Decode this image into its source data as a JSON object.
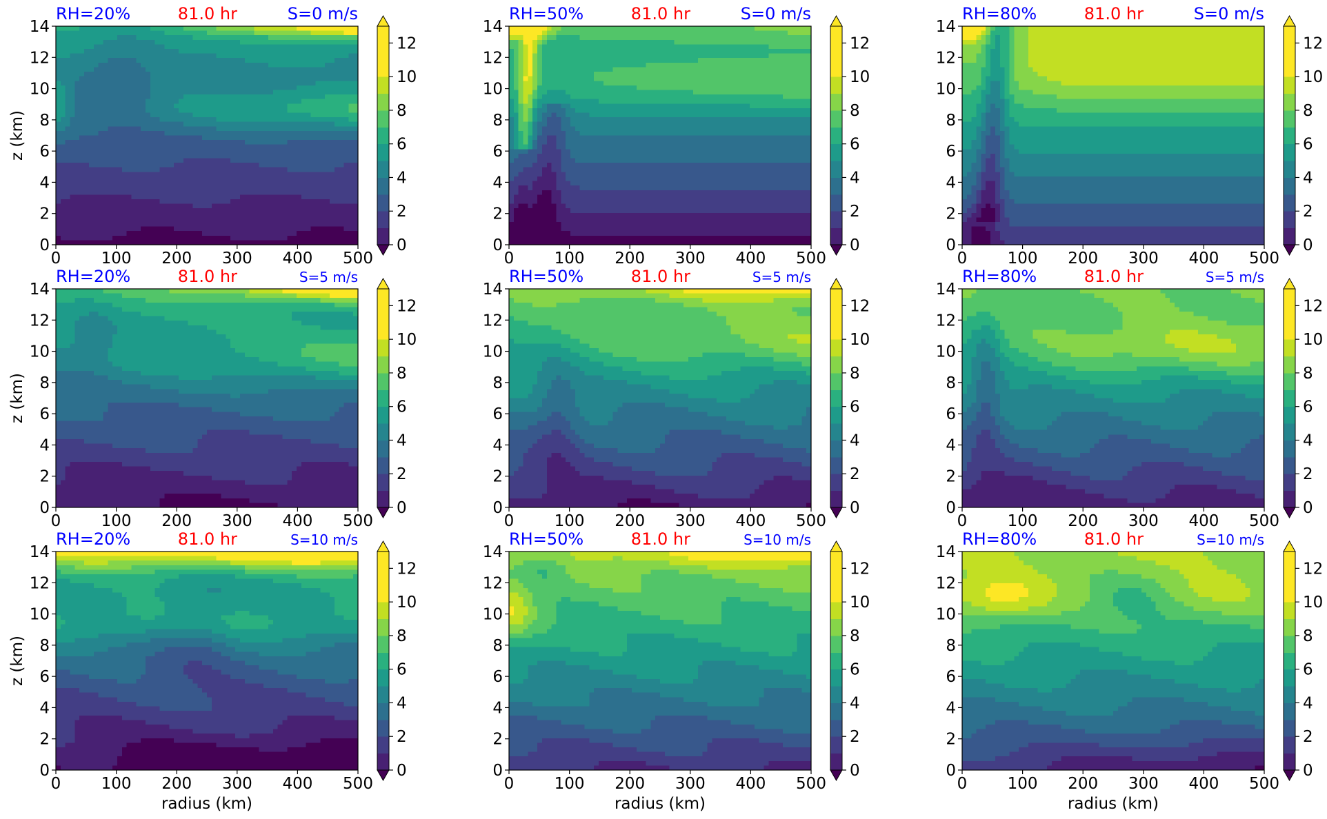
{
  "figure": {
    "colors": {
      "rh_label": "#0000ff",
      "time_label": "#ff0000",
      "shear_label": "#0000ff",
      "axis": "#000000"
    },
    "colormap": "viridis",
    "colorbar": {
      "levels": [
        0,
        1,
        2,
        3,
        4,
        5,
        6,
        7,
        8,
        9,
        10,
        11,
        12,
        13
      ],
      "ticks": [
        0,
        2,
        4,
        6,
        8,
        10,
        12
      ],
      "extend": "both",
      "colors": [
        "#440154",
        "#482173",
        "#433e85",
        "#38588c",
        "#2d708e",
        "#25858e",
        "#1e9b8a",
        "#2ab07f",
        "#52c569",
        "#86d549",
        "#c2df23",
        "#fde725"
      ]
    }
  },
  "chart_data": [
    {
      "type": "contour",
      "rh": "RH=20%",
      "time": "81.0 hr",
      "shear": "S=0 m/s",
      "xlabel": "",
      "ylabel": "z (km)",
      "xlim": [
        0,
        500
      ],
      "ylim": [
        0,
        14
      ],
      "xticks": [
        0,
        100,
        200,
        300,
        400,
        500
      ],
      "yticks": [
        0,
        2,
        4,
        6,
        8,
        10,
        12,
        14
      ]
    },
    {
      "type": "contour",
      "rh": "RH=50%",
      "time": "81.0 hr",
      "shear": "S=0 m/s",
      "xlabel": "",
      "ylabel": "",
      "xlim": [
        0,
        500
      ],
      "ylim": [
        0,
        14
      ],
      "xticks": [
        0,
        100,
        200,
        300,
        400,
        500
      ],
      "yticks": [
        0,
        2,
        4,
        6,
        8,
        10,
        12,
        14
      ]
    },
    {
      "type": "contour",
      "rh": "RH=80%",
      "time": "81.0 hr",
      "shear": "S=0 m/s",
      "xlabel": "",
      "ylabel": "",
      "xlim": [
        0,
        500
      ],
      "ylim": [
        0,
        14
      ],
      "xticks": [
        0,
        100,
        200,
        300,
        400,
        500
      ],
      "yticks": [
        0,
        2,
        4,
        6,
        8,
        10,
        12,
        14
      ]
    },
    {
      "type": "contour",
      "rh": "RH=20%",
      "time": "81.0 hr",
      "shear": "S=5 m/s",
      "xlabel": "",
      "ylabel": "z (km)",
      "xlim": [
        0,
        500
      ],
      "ylim": [
        0,
        14
      ],
      "xticks": [
        0,
        100,
        200,
        300,
        400,
        500
      ],
      "yticks": [
        0,
        2,
        4,
        6,
        8,
        10,
        12,
        14
      ]
    },
    {
      "type": "contour",
      "rh": "RH=50%",
      "time": "81.0 hr",
      "shear": "S=5 m/s",
      "xlabel": "",
      "ylabel": "",
      "xlim": [
        0,
        500
      ],
      "ylim": [
        0,
        14
      ],
      "xticks": [
        0,
        100,
        200,
        300,
        400,
        500
      ],
      "yticks": [
        0,
        2,
        4,
        6,
        8,
        10,
        12,
        14
      ]
    },
    {
      "type": "contour",
      "rh": "RH=80%",
      "time": "81.0 hr",
      "shear": "S=5 m/s",
      "xlabel": "",
      "ylabel": "",
      "xlim": [
        0,
        500
      ],
      "ylim": [
        0,
        14
      ],
      "xticks": [
        0,
        100,
        200,
        300,
        400,
        500
      ],
      "yticks": [
        0,
        2,
        4,
        6,
        8,
        10,
        12,
        14
      ]
    },
    {
      "type": "contour",
      "rh": "RH=20%",
      "time": "81.0 hr",
      "shear": "S=10 m/s",
      "xlabel": "radius (km)",
      "ylabel": "z (km)",
      "xlim": [
        0,
        500
      ],
      "ylim": [
        0,
        14
      ],
      "xticks": [
        0,
        100,
        200,
        300,
        400,
        500
      ],
      "yticks": [
        0,
        2,
        4,
        6,
        8,
        10,
        12,
        14
      ]
    },
    {
      "type": "contour",
      "rh": "RH=50%",
      "time": "81.0 hr",
      "shear": "S=10 m/s",
      "xlabel": "radius (km)",
      "ylabel": "",
      "xlim": [
        0,
        500
      ],
      "ylim": [
        0,
        14
      ],
      "xticks": [
        0,
        100,
        200,
        300,
        400,
        500
      ],
      "yticks": [
        0,
        2,
        4,
        6,
        8,
        10,
        12,
        14
      ]
    },
    {
      "type": "contour",
      "rh": "RH=80%",
      "time": "81.0 hr",
      "shear": "S=10 m/s",
      "xlabel": "radius (km)",
      "ylabel": "",
      "xlim": [
        0,
        500
      ],
      "ylim": [
        0,
        14
      ],
      "xticks": [
        0,
        100,
        200,
        300,
        400,
        500
      ],
      "yticks": [
        0,
        2,
        4,
        6,
        8,
        10,
        12,
        14
      ]
    }
  ]
}
